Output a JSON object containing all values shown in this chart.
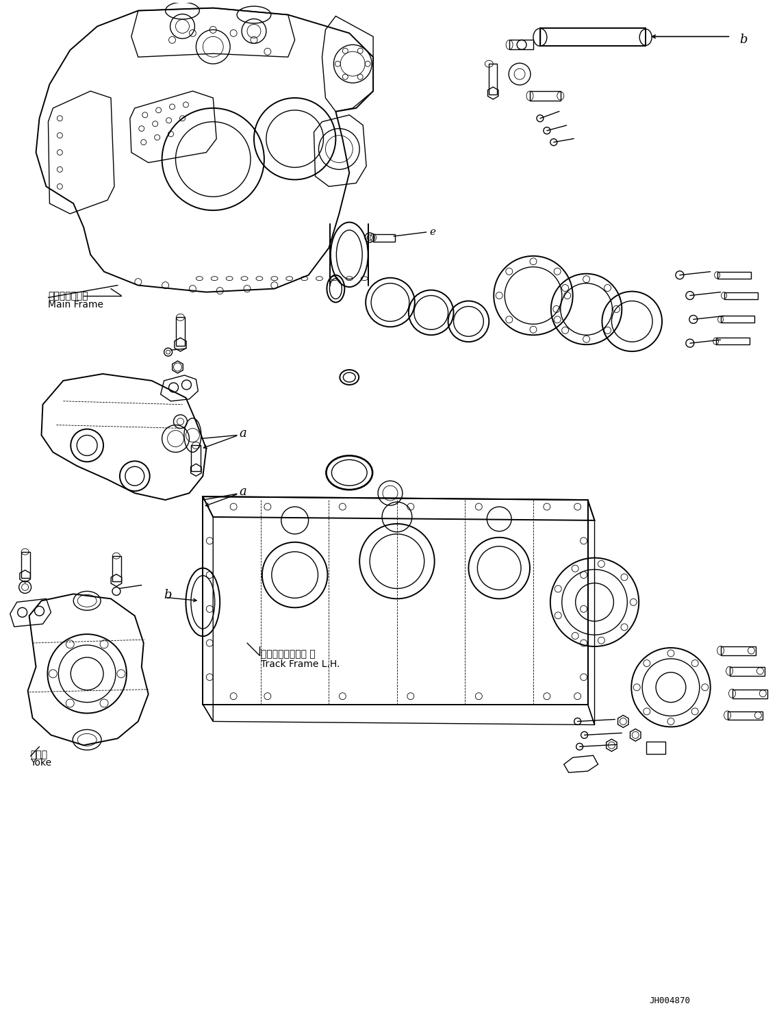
{
  "bg_color": "#ffffff",
  "fig_width": 11.35,
  "fig_height": 14.91,
  "dpi": 100,
  "labels": {
    "main_frame_ja": "メインフレーム",
    "main_frame_en": "Main Frame",
    "track_frame_ja": "トラックフレーム 左",
    "track_frame_en": "Track Frame L.H.",
    "yoke_ja": "ヨーク",
    "yoke_en": "Yoke",
    "doc_id": "JH004870",
    "label_a1": "a",
    "label_a2": "a",
    "label_b1": "b",
    "label_b2": "b",
    "label_e": "e"
  },
  "text_color": "#000000",
  "line_color": "#000000",
  "lw_main": 1.0,
  "lw_thin": 0.6,
  "lw_thick": 1.4
}
